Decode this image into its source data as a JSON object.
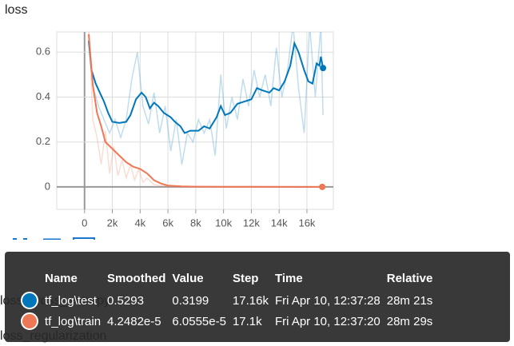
{
  "chart_data": {
    "type": "line",
    "title": "loss",
    "xlim": [
      -2000,
      17900
    ],
    "ylim": [
      -0.1,
      0.69
    ],
    "xticks": [
      {
        "value": 0,
        "label": "0"
      },
      {
        "value": 2000,
        "label": "2k"
      },
      {
        "value": 4000,
        "label": "4k"
      },
      {
        "value": 6000,
        "label": "6k"
      },
      {
        "value": 8000,
        "label": "8k"
      },
      {
        "value": 10000,
        "label": "10k"
      },
      {
        "value": 12000,
        "label": "12k"
      },
      {
        "value": 14000,
        "label": "14k"
      },
      {
        "value": 16000,
        "label": "16k"
      }
    ],
    "yticks": [
      0,
      0.2,
      0.4,
      0.6
    ],
    "grid": true,
    "series": [
      {
        "name": "tf_log\\test",
        "color": "#0077bb",
        "raw": true,
        "x": [
          300,
          600,
          1000,
          1400,
          1800,
          2200,
          2600,
          3000,
          3400,
          3800,
          4200,
          4600,
          5000,
          5400,
          5800,
          6200,
          6600,
          7000,
          7400,
          7800,
          8200,
          8600,
          9000,
          9400,
          9800,
          10200,
          10600,
          11000,
          11400,
          11800,
          12200,
          12600,
          13000,
          13400,
          13800,
          14200,
          14600,
          15000,
          15400,
          15800,
          16200,
          16600,
          17000,
          17160
        ],
        "values": [
          0.65,
          0.45,
          0.36,
          0.3,
          0.24,
          0.3,
          0.22,
          0.3,
          0.48,
          0.6,
          0.36,
          0.28,
          0.42,
          0.24,
          0.36,
          0.16,
          0.3,
          0.1,
          0.24,
          0.2,
          0.3,
          0.24,
          0.3,
          0.14,
          0.5,
          0.26,
          0.4,
          0.3,
          0.48,
          0.36,
          0.52,
          0.4,
          0.5,
          0.36,
          0.62,
          0.4,
          0.52,
          0.72,
          0.44,
          0.24,
          0.72,
          0.4,
          0.72,
          0.3199
        ]
      },
      {
        "name": "tf_log\\train",
        "color": "#ee7755",
        "raw": true,
        "x": [
          300,
          600,
          900,
          1200,
          1500,
          1800,
          2100,
          2400,
          2700,
          3000,
          3300,
          3600,
          3900,
          4200,
          4500,
          5000,
          5500,
          6000,
          7000,
          8000,
          10000,
          12000,
          14000,
          17100
        ],
        "values": [
          0.72,
          0.3,
          0.22,
          0.1,
          0.25,
          0.06,
          0.18,
          0.05,
          0.12,
          0.04,
          0.1,
          0.03,
          0.08,
          0.02,
          0.04,
          0.01,
          0.005,
          0.002,
          0.001,
          0.0005,
          0.0003,
          0.0001,
          8e-05,
          6.0555e-05
        ]
      },
      {
        "name": "tf_log\\test",
        "color": "#0077bb",
        "raw": false,
        "x": [
          300,
          500,
          800,
          1100,
          1400,
          1700,
          2000,
          2500,
          3000,
          3300,
          3700,
          4100,
          4400,
          4700,
          5000,
          5300,
          5700,
          6200,
          6500,
          6900,
          7200,
          7600,
          8200,
          8600,
          9000,
          9500,
          9800,
          10100,
          10500,
          11000,
          11500,
          12000,
          12400,
          12800,
          13300,
          13600,
          14000,
          14400,
          14800,
          15100,
          15400,
          15800,
          16100,
          16400,
          16700,
          16900,
          17000,
          17160
        ],
        "values": [
          0.65,
          0.52,
          0.46,
          0.42,
          0.38,
          0.33,
          0.29,
          0.285,
          0.29,
          0.32,
          0.39,
          0.42,
          0.4,
          0.35,
          0.375,
          0.36,
          0.33,
          0.31,
          0.29,
          0.27,
          0.24,
          0.25,
          0.25,
          0.27,
          0.26,
          0.31,
          0.36,
          0.32,
          0.33,
          0.37,
          0.38,
          0.39,
          0.44,
          0.43,
          0.42,
          0.44,
          0.43,
          0.47,
          0.54,
          0.64,
          0.6,
          0.52,
          0.47,
          0.46,
          0.55,
          0.54,
          0.58,
          0.5293
        ]
      },
      {
        "name": "tf_log\\train",
        "color": "#ee7755",
        "raw": false,
        "x": [
          300,
          600,
          900,
          1200,
          1500,
          2000,
          2500,
          3000,
          3500,
          4000,
          4500,
          5000,
          5500,
          6000,
          7000,
          8000,
          10000,
          12000,
          17100
        ],
        "values": [
          0.68,
          0.45,
          0.33,
          0.27,
          0.2,
          0.17,
          0.14,
          0.11,
          0.09,
          0.08,
          0.06,
          0.03,
          0.015,
          0.006,
          0.002,
          0.001,
          0.0005,
          0.0002,
          4.2482e-05
        ]
      }
    ]
  },
  "cards": [
    "loss_cross_entropy",
    "loss_regularization"
  ],
  "tooltip": {
    "columns": [
      "Name",
      "Smoothed",
      "Value",
      "Step",
      "Time",
      "Relative"
    ],
    "rows": [
      {
        "color": "#0077bb",
        "cells": [
          "tf_log\\test",
          "0.5293",
          "0.3199",
          "17.16k",
          "Fri Apr 10, 12:37:28",
          "28m 21s"
        ]
      },
      {
        "color": "#ee7755",
        "cells": [
          "tf_log\\train",
          "4.2482e-5",
          "6.0555e-5",
          "17.1k",
          "Fri Apr 10, 12:37:20",
          "28m 29s"
        ]
      }
    ]
  }
}
